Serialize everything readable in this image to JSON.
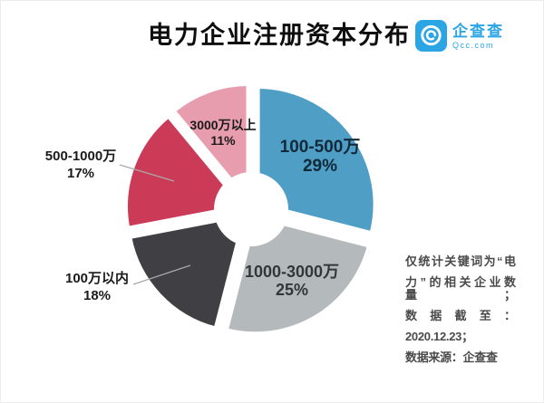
{
  "title": "电力企业注册资本分布",
  "logo": {
    "name": "企查查",
    "domain": "Qcc.com",
    "brand_color": "#2BA5E4"
  },
  "chart_data": {
    "type": "pie",
    "title": "电力企业注册资本分布",
    "donut": true,
    "start_angle": "12-o'clock",
    "direction": "clockwise",
    "legend_position": "none",
    "slices": [
      {
        "label": "100-500万",
        "percent": 29,
        "color": "#4E9EC5",
        "label_color": "#12293A",
        "label_placement": "inside"
      },
      {
        "label": "1000-3000万",
        "percent": 25,
        "color": "#B4B9BC",
        "label_color": "#32373B",
        "label_placement": "inside"
      },
      {
        "label": "100万以内",
        "percent": 18,
        "color": "#403F43",
        "label_color": "#1a1a1a",
        "label_placement": "outside"
      },
      {
        "label": "500-1000万",
        "percent": 17,
        "color": "#CB3A57",
        "label_color": "#1a1a1a",
        "label_placement": "outside"
      },
      {
        "label": "3000万以上",
        "percent": 11,
        "color": "#E79DAD",
        "label_color": "#1a1a1a",
        "label_placement": "inside"
      }
    ]
  },
  "note": {
    "lines": [
      "仅统计关键词为“电",
      "力”的相关企业数量；",
      "数据截至：",
      "2020.12.23；",
      "数据来源：企查查"
    ]
  }
}
